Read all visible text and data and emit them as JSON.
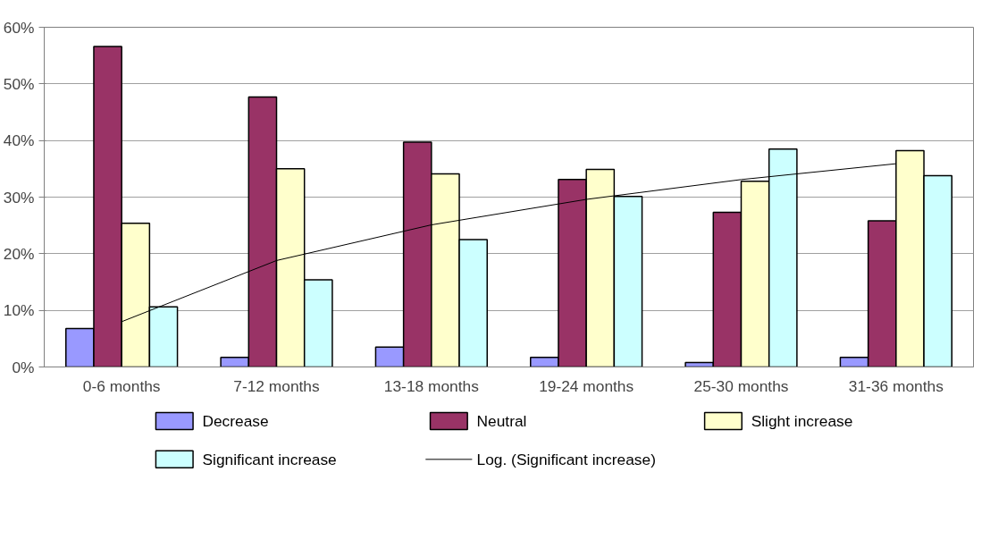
{
  "chart_data": {
    "type": "bar",
    "categories": [
      "0-6 months",
      "7-12 months",
      "13-18 months",
      "19-24 months",
      "25-30 months",
      "31-36 months"
    ],
    "series": [
      {
        "name": "Decrease",
        "color": "#9999ff",
        "values": [
          6.8,
          1.7,
          3.5,
          1.7,
          0.8,
          1.7
        ]
      },
      {
        "name": "Neutral",
        "color": "#993366",
        "values": [
          56.6,
          47.7,
          39.7,
          33.1,
          27.3,
          25.8
        ]
      },
      {
        "name": "Slight increase",
        "color": "#ffffcc",
        "values": [
          25.4,
          35.0,
          34.1,
          34.9,
          32.8,
          38.2
        ]
      },
      {
        "name": "Significant increase",
        "color": "#ccffff",
        "values": [
          10.6,
          15.4,
          22.5,
          30.1,
          38.5,
          33.8
        ]
      },
      {
        "name": "Log. (Significant increase)",
        "type": "line",
        "color": "#000000",
        "values": [
          8,
          18.8,
          25.1,
          29.6,
          33.1,
          35.9
        ]
      }
    ],
    "ylim": [
      0,
      60
    ],
    "yticks": [
      {
        "value": 0,
        "label": "0%"
      },
      {
        "value": 10,
        "label": "10%"
      },
      {
        "value": 20,
        "label": "20%"
      },
      {
        "value": 30,
        "label": "30%"
      },
      {
        "value": 40,
        "label": "40%"
      },
      {
        "value": 50,
        "label": "50%"
      },
      {
        "value": 60,
        "label": "60%"
      }
    ],
    "grid": "y",
    "legend": "bottom"
  }
}
